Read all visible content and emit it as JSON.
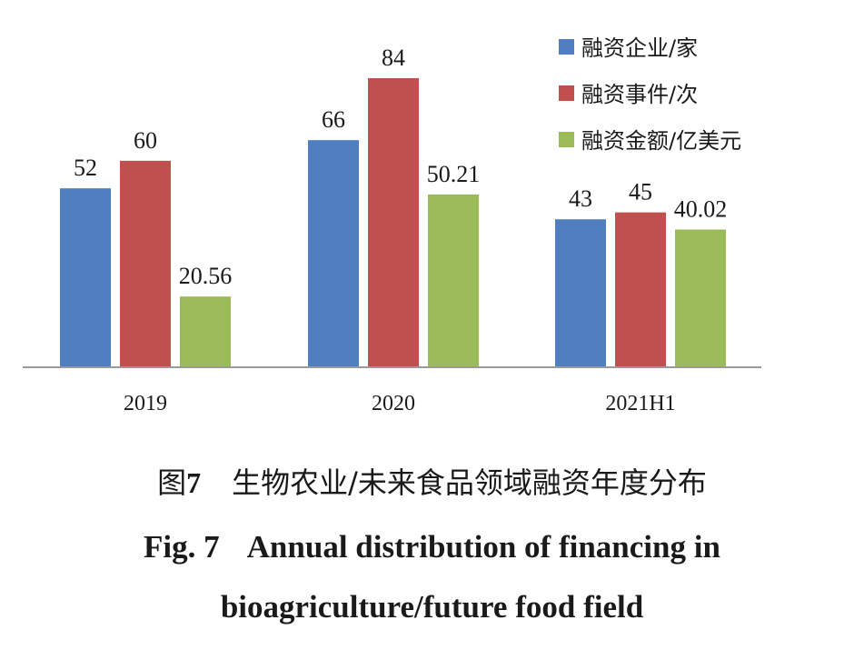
{
  "chart_data": {
    "type": "bar",
    "categories": [
      "2019",
      "2020",
      "2021H1"
    ],
    "series": [
      {
        "name": "融资企业/家",
        "color": "#4f7fc0",
        "values": [
          52,
          66,
          43
        ],
        "labels": [
          "52",
          "66",
          "43"
        ]
      },
      {
        "name": "融资事件/次",
        "color": "#c0504d",
        "values": [
          60,
          84,
          45
        ],
        "labels": [
          "60",
          "84",
          "45"
        ]
      },
      {
        "name": "融资金额/亿美元",
        "color": "#9bbb59",
        "values": [
          20.56,
          50.21,
          40.02
        ],
        "labels": [
          "20.56",
          "50.21",
          "40.02"
        ]
      }
    ],
    "ylim": [
      0,
      84
    ],
    "grid": false,
    "legend": "top-right"
  },
  "caption": {
    "cn_prefix": "图",
    "cn_number": "7",
    "cn_text": "生物农业/未来食品领域融资年度分布",
    "en_prefix": "Fig. 7",
    "en_line1": "Annual distribution of financing in",
    "en_line2": "bioagriculture/future food field"
  }
}
